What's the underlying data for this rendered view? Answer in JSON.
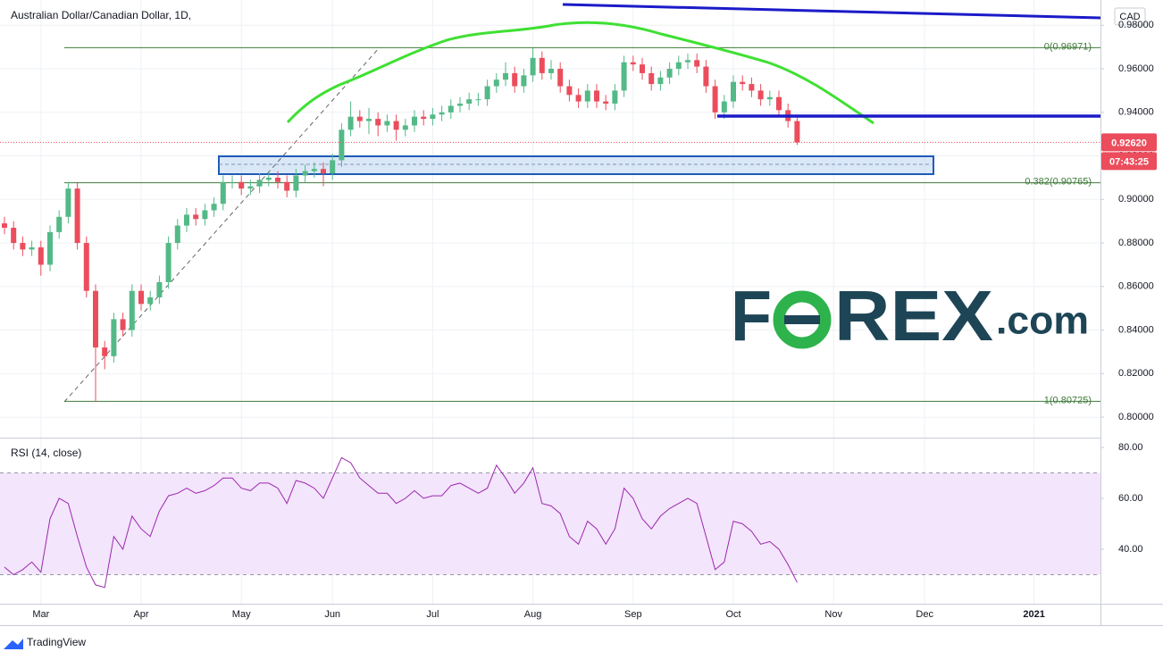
{
  "chart_data": [
    {
      "type": "candlestick",
      "title": "Australian Dollar/Canadian Dollar, 1D,",
      "currency": "CAD",
      "categories": [
        null,
        null,
        null,
        null,
        "Mar",
        null,
        null,
        null,
        null,
        null,
        null,
        null,
        null,
        null,
        null,
        "Apr",
        null,
        null,
        null,
        null,
        null,
        null,
        null,
        null,
        null,
        null,
        "May",
        null,
        null,
        null,
        null,
        null,
        null,
        null,
        null,
        null,
        "Jun",
        null,
        null,
        null,
        null,
        null,
        null,
        null,
        null,
        null,
        null,
        "Jul",
        null,
        null,
        null,
        null,
        null,
        null,
        null,
        null,
        null,
        null,
        "Aug",
        null,
        null,
        null,
        null,
        null,
        null,
        null,
        null,
        null,
        null,
        "Sep",
        null,
        null,
        null,
        null,
        null,
        null,
        null,
        null,
        null,
        null,
        "Oct",
        null,
        null,
        null,
        null,
        null,
        null,
        null,
        null,
        null,
        null,
        "Nov",
        null,
        null,
        null,
        null,
        null,
        null,
        null,
        null,
        null,
        "Dec",
        null,
        null,
        null,
        null,
        null,
        null,
        null,
        null,
        null,
        null,
        null,
        "2021",
        null,
        null,
        null,
        null,
        null,
        null,
        null
      ],
      "open": [
        0.889,
        0.887,
        0.88,
        0.877,
        0.878,
        0.87,
        0.885,
        0.892,
        0.905,
        0.88,
        0.858,
        0.832,
        0.828,
        0.845,
        0.84,
        0.858,
        0.852,
        0.855,
        0.862,
        0.88,
        0.888,
        0.893,
        0.891,
        0.895,
        0.898,
        0.908,
        0.908,
        0.905,
        0.906,
        0.909,
        0.91,
        0.908,
        0.904,
        0.911,
        0.913,
        0.914,
        0.912,
        0.918,
        0.932,
        0.938,
        0.936,
        0.937,
        0.934,
        0.936,
        0.932,
        0.934,
        0.938,
        0.937,
        0.939,
        0.94,
        0.943,
        0.944,
        0.946,
        0.946,
        0.952,
        0.955,
        0.958,
        0.952,
        0.957,
        0.965,
        0.958,
        0.96,
        0.952,
        0.948,
        0.945,
        0.95,
        0.945,
        0.944,
        0.95,
        0.963,
        0.962,
        0.958,
        0.953,
        0.956,
        0.96,
        0.963,
        0.964,
        0.961,
        0.952,
        0.94,
        0.945,
        0.954,
        0.953,
        0.95,
        0.946,
        0.947,
        0.941,
        0.936,
        null,
        null,
        null,
        null,
        null,
        null,
        null,
        null,
        null,
        null,
        null,
        null,
        null,
        null,
        null,
        null,
        null,
        null,
        null,
        null,
        null,
        null,
        null,
        null,
        null,
        null,
        null,
        null,
        null,
        null,
        null,
        null,
        null
      ],
      "high": [
        0.892,
        0.89,
        0.883,
        0.881,
        0.881,
        0.888,
        0.895,
        0.908,
        0.908,
        0.883,
        0.861,
        0.835,
        0.848,
        0.848,
        0.861,
        0.861,
        0.858,
        0.865,
        0.883,
        0.891,
        0.896,
        0.896,
        0.898,
        0.901,
        0.911,
        0.911,
        0.911,
        0.909,
        0.912,
        0.913,
        0.913,
        0.911,
        0.914,
        0.916,
        0.917,
        0.917,
        0.921,
        0.935,
        0.945,
        0.941,
        0.942,
        0.94,
        0.939,
        0.939,
        0.937,
        0.941,
        0.941,
        0.942,
        0.943,
        0.946,
        0.947,
        0.949,
        0.949,
        0.955,
        0.958,
        0.963,
        0.961,
        0.96,
        0.9697,
        0.968,
        0.964,
        0.963,
        0.955,
        0.951,
        0.953,
        0.953,
        0.948,
        0.953,
        0.966,
        0.966,
        0.965,
        0.961,
        0.959,
        0.963,
        0.966,
        0.967,
        0.967,
        0.964,
        0.955,
        0.948,
        0.957,
        0.957,
        0.956,
        0.953,
        0.95,
        0.95,
        0.944,
        0.939,
        null,
        null,
        null,
        null,
        null,
        null,
        null,
        null,
        null,
        null,
        null,
        null,
        null,
        null,
        null,
        null,
        null,
        null,
        null,
        null,
        null,
        null,
        null,
        null,
        null,
        null,
        null,
        null,
        null,
        null,
        null,
        null,
        null
      ],
      "low": [
        0.884,
        0.877,
        0.874,
        0.874,
        0.865,
        0.867,
        0.882,
        0.889,
        0.877,
        0.855,
        0.807,
        0.822,
        0.825,
        0.837,
        0.837,
        0.849,
        0.849,
        0.852,
        0.859,
        0.877,
        0.885,
        0.888,
        0.888,
        0.892,
        0.895,
        0.905,
        0.902,
        0.902,
        0.903,
        0.906,
        0.905,
        0.901,
        0.901,
        0.908,
        0.91,
        0.906,
        0.909,
        0.915,
        0.929,
        0.933,
        0.93,
        0.929,
        0.931,
        0.927,
        0.929,
        0.931,
        0.934,
        0.934,
        0.936,
        0.937,
        0.94,
        0.941,
        0.943,
        0.943,
        0.949,
        0.952,
        0.949,
        0.949,
        0.954,
        0.955,
        0.955,
        0.949,
        0.945,
        0.942,
        0.942,
        0.942,
        0.941,
        0.941,
        0.947,
        0.959,
        0.955,
        0.95,
        0.95,
        0.953,
        0.957,
        0.96,
        0.958,
        0.949,
        0.937,
        0.937,
        0.942,
        0.95,
        0.947,
        0.943,
        0.943,
        0.938,
        0.933,
        0.925,
        null,
        null,
        null,
        null,
        null,
        null,
        null,
        null,
        null,
        null,
        null,
        null,
        null,
        null,
        null,
        null,
        null,
        null,
        null,
        null,
        null,
        null,
        null,
        null,
        null,
        null,
        null,
        null,
        null,
        null,
        null,
        null,
        null
      ],
      "close": [
        0.887,
        0.88,
        0.877,
        0.878,
        0.87,
        0.885,
        0.892,
        0.905,
        0.88,
        0.858,
        0.832,
        0.828,
        0.845,
        0.84,
        0.858,
        0.852,
        0.855,
        0.862,
        0.88,
        0.888,
        0.893,
        0.891,
        0.895,
        0.898,
        0.908,
        0.908,
        0.905,
        0.906,
        0.909,
        0.91,
        0.908,
        0.904,
        0.911,
        0.913,
        0.914,
        0.912,
        0.918,
        0.932,
        0.938,
        0.936,
        0.937,
        0.934,
        0.936,
        0.932,
        0.934,
        0.938,
        0.937,
        0.939,
        0.94,
        0.943,
        0.944,
        0.946,
        0.946,
        0.952,
        0.955,
        0.958,
        0.952,
        0.957,
        0.965,
        0.958,
        0.96,
        0.952,
        0.948,
        0.945,
        0.95,
        0.945,
        0.944,
        0.95,
        0.963,
        0.962,
        0.958,
        0.953,
        0.956,
        0.96,
        0.963,
        0.964,
        0.961,
        0.952,
        0.94,
        0.945,
        0.954,
        0.953,
        0.95,
        0.946,
        0.947,
        0.941,
        0.936,
        0.9262,
        null,
        null,
        null,
        null,
        null,
        null,
        null,
        null,
        null,
        null,
        null,
        null,
        null,
        null,
        null,
        null,
        null,
        null,
        null,
        null,
        null,
        null,
        null,
        null,
        null,
        null,
        null,
        null,
        null,
        null,
        null,
        null,
        null
      ],
      "color_up": "#53b987",
      "color_down": "#eb4d5c",
      "ylim": [
        0.7906,
        0.9916
      ],
      "yticks": [
        {
          "value": 0.8,
          "label": "0.80000"
        },
        {
          "value": 0.82,
          "label": "0.82000"
        },
        {
          "value": 0.84,
          "label": "0.84000"
        },
        {
          "value": 0.86,
          "label": "0.86000"
        },
        {
          "value": 0.88,
          "label": "0.88000"
        },
        {
          "value": 0.9,
          "label": "0.90000"
        },
        {
          "value": 0.92,
          "label": "0.92000"
        },
        {
          "value": 0.94,
          "label": "0.94000"
        },
        {
          "value": 0.96,
          "label": "0.96000"
        },
        {
          "value": 0.98,
          "label": "0.98000"
        }
      ],
      "grid": true,
      "last_price": {
        "value": 0.9262,
        "label": "0.92620"
      },
      "countdown": "07:43:25",
      "fib_color": "#3f7a3a",
      "fib_levels": [
        {
          "value": 0.96971,
          "label": "0(0.96971)"
        },
        {
          "value": 0.90765,
          "label": "0.382(0.90765)"
        },
        {
          "value": 0.80725,
          "label": "1(0.80725)"
        }
      ]
    },
    {
      "type": "line",
      "title": "RSI (14, close)",
      "color": "#9c27b0",
      "values": [
        33,
        30,
        32,
        35,
        31,
        52,
        60,
        58,
        45,
        33,
        26,
        25,
        45,
        40,
        53,
        48,
        45,
        55,
        61,
        62,
        64,
        62,
        63,
        65,
        68,
        68,
        64,
        63,
        66,
        66,
        64,
        58,
        67,
        66,
        64,
        60,
        68,
        76,
        74,
        68,
        65,
        62,
        62,
        58,
        60,
        63,
        60,
        61,
        61,
        65,
        66,
        64,
        62,
        64,
        73,
        68,
        62,
        66,
        72,
        58,
        57,
        54,
        45,
        42,
        51,
        48,
        42,
        48,
        64,
        60,
        52,
        48,
        53,
        56,
        58,
        60,
        58,
        45,
        32,
        35,
        51,
        50,
        47,
        42,
        43,
        40,
        34,
        27,
        null,
        null,
        null,
        null,
        null,
        null,
        null,
        null,
        null,
        null,
        null,
        null,
        null,
        null,
        null,
        null,
        null,
        null,
        null,
        null,
        null,
        null,
        null,
        null,
        null,
        null,
        null,
        null,
        null,
        null,
        null,
        null,
        null
      ],
      "ylim": [
        18.6,
        82.8
      ],
      "yticks": [
        {
          "value": 40,
          "label": "40.00"
        },
        {
          "value": 60,
          "label": "60.00"
        },
        {
          "value": 80,
          "label": "80.00"
        }
      ],
      "band": [
        30,
        70
      ],
      "band_color": "#f3e5fb"
    }
  ],
  "branding": {
    "logo_left": "F",
    "logo_right": "REX",
    "logo_suffix": ".com",
    "platform": "TradingView"
  }
}
